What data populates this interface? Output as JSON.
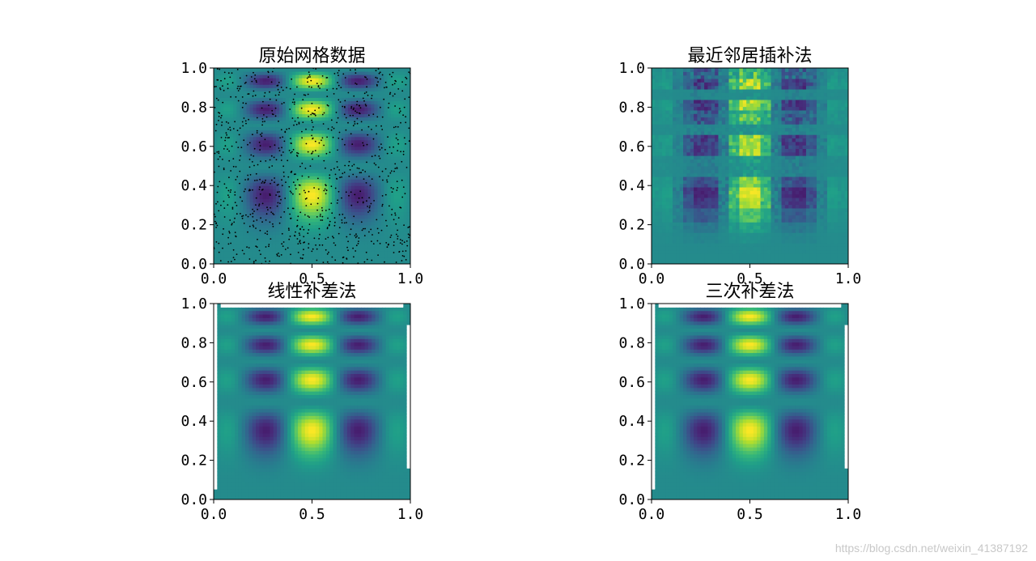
{
  "chart_data": [
    {
      "type": "heatmap",
      "title": "原始网格数据",
      "xlim": [
        0,
        1
      ],
      "ylim": [
        0,
        1
      ],
      "xticks": [
        "0.0",
        "0.5",
        "1.0"
      ],
      "yticks": [
        "0.0",
        "0.2",
        "0.4",
        "0.6",
        "0.8",
        "1.0"
      ],
      "colormap": "viridis",
      "method": "original",
      "overlay": "scatter-points",
      "point_color": "#000000"
    },
    {
      "type": "heatmap",
      "title": "最近邻居插补法",
      "xlim": [
        0,
        1
      ],
      "ylim": [
        0,
        1
      ],
      "xticks": [
        "0.0",
        "0.5",
        "1.0"
      ],
      "yticks": [
        "0.0",
        "0.2",
        "0.4",
        "0.6",
        "0.8",
        "1.0"
      ],
      "colormap": "viridis",
      "method": "nearest"
    },
    {
      "type": "heatmap",
      "title": "线性补差法",
      "xlim": [
        0,
        1
      ],
      "ylim": [
        0,
        1
      ],
      "xticks": [
        "0.0",
        "0.5",
        "1.0"
      ],
      "yticks": [
        "0.0",
        "0.2",
        "0.4",
        "0.6",
        "0.8",
        "1.0"
      ],
      "colormap": "viridis",
      "method": "linear"
    },
    {
      "type": "heatmap",
      "title": "三次补差法",
      "xlim": [
        0,
        1
      ],
      "ylim": [
        0,
        1
      ],
      "xticks": [
        "0.0",
        "0.5",
        "1.0"
      ],
      "yticks": [
        "0.0",
        "0.2",
        "0.4",
        "0.6",
        "0.8",
        "1.0"
      ],
      "colormap": "viridis",
      "method": "cubic"
    }
  ],
  "watermark": "https://blog.csdn.net/weixin_41387192"
}
